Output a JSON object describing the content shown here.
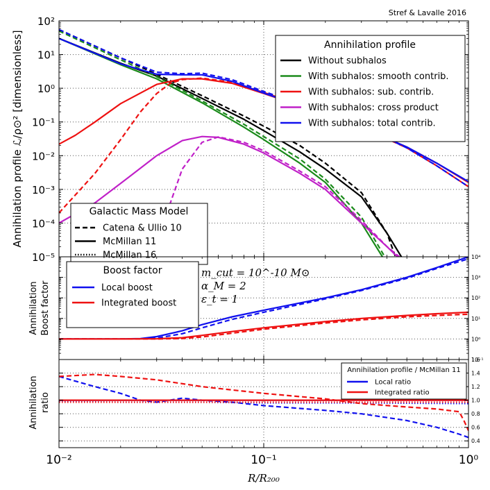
{
  "credit": "Stref & Lavalle 2016",
  "colors": {
    "black": "#000000",
    "green": "#1a8a1a",
    "red": "#ee1111",
    "magenta": "#c020c8",
    "blue": "#1010ee"
  },
  "chart_data": [
    {
      "type": "line",
      "title": "Annihilation profile",
      "ylabel": "Annihilation profile ℒ/ρ⊙² [dimensionless]",
      "xscale": "log",
      "yscale": "log",
      "xlim": [
        0.01,
        1
      ],
      "ylim": [
        1e-05,
        100
      ],
      "yticks": [
        "10⁻⁵",
        "10⁻⁴",
        "10⁻³",
        "10⁻²",
        "10⁻¹",
        "10⁰",
        "10¹",
        "10²"
      ],
      "ytick_values": [
        1e-05,
        0.0001,
        0.001,
        0.01,
        0.1,
        1,
        10,
        100
      ],
      "grid": "dotted at x = 0.1, 1",
      "legend": {
        "title": "Annihilation profile",
        "position": "upper right",
        "entries": [
          {
            "label": "Without subhalos",
            "color_key": "black"
          },
          {
            "label": "With subhalos: smooth contrib.",
            "color_key": "green"
          },
          {
            "label": "With subhalos: sub. contrib.",
            "color_key": "red"
          },
          {
            "label": "With subhalos: cross product",
            "color_key": "magenta"
          },
          {
            "label": "With subhalos: total contrib.",
            "color_key": "blue"
          }
        ]
      },
      "style_legend": {
        "title": "Galactic Mass Model",
        "position": "lower left",
        "entries": [
          {
            "label": "Catena & Ullio 10",
            "dash": "dashed"
          },
          {
            "label": "McMillan 11",
            "dash": "solid"
          },
          {
            "label": "McMillan 16",
            "dash": "dotted"
          }
        ]
      },
      "series": [
        {
          "name": "Without subhalos",
          "color_key": "black",
          "model": "McMillan 11",
          "dash": "solid",
          "x": [
            0.01,
            0.02,
            0.03,
            0.05,
            0.08,
            0.1,
            0.15,
            0.2,
            0.3,
            0.4,
            0.47
          ],
          "y": [
            30,
            5.5,
            2.3,
            0.5,
            0.12,
            0.055,
            0.013,
            0.004,
            0.0006,
            5e-05,
            1e-05
          ]
        },
        {
          "name": "Without subhalos",
          "color_key": "black",
          "model": "Catena & Ullio 10",
          "dash": "dashed",
          "x": [
            0.01,
            0.02,
            0.03,
            0.05,
            0.08,
            0.1,
            0.15,
            0.2,
            0.3,
            0.4,
            0.44
          ],
          "y": [
            55,
            8,
            2.6,
            0.6,
            0.15,
            0.075,
            0.02,
            0.006,
            0.0008,
            5e-05,
            1e-05
          ]
        },
        {
          "name": "With subhalos: smooth contrib.",
          "color_key": "green",
          "model": "McMillan 11",
          "dash": "solid",
          "x": [
            0.01,
            0.02,
            0.03,
            0.05,
            0.08,
            0.1,
            0.15,
            0.2,
            0.3,
            0.38
          ],
          "y": [
            30,
            5,
            1.9,
            0.37,
            0.07,
            0.03,
            0.006,
            0.0016,
            0.0001,
            1e-05
          ]
        },
        {
          "name": "With subhalos: smooth contrib.",
          "color_key": "green",
          "model": "Catena & Ullio 10",
          "dash": "dashed",
          "x": [
            0.01,
            0.02,
            0.03,
            0.05,
            0.08,
            0.1,
            0.15,
            0.2,
            0.3,
            0.39
          ],
          "y": [
            50,
            7,
            2.2,
            0.42,
            0.085,
            0.037,
            0.008,
            0.002,
            0.00015,
            1e-05
          ]
        },
        {
          "name": "With subhalos: sub. contrib.",
          "color_key": "red",
          "model": "McMillan 11",
          "dash": "solid",
          "x": [
            0.01,
            0.012,
            0.015,
            0.02,
            0.03,
            0.04,
            0.05,
            0.07,
            0.1,
            0.2,
            0.3,
            0.5,
            0.7,
            1
          ],
          "y": [
            0.022,
            0.04,
            0.1,
            0.35,
            1.3,
            1.9,
            1.9,
            1.4,
            0.7,
            0.17,
            0.07,
            0.018,
            0.006,
            0.0016
          ]
        },
        {
          "name": "With subhalos: sub. contrib.",
          "color_key": "red",
          "model": "Catena & Ullio 10",
          "dash": "dashed",
          "x": [
            0.01,
            0.015,
            0.02,
            0.025,
            0.03,
            0.035,
            0.04,
            0.05,
            0.07,
            0.1,
            0.2,
            0.3,
            0.5,
            0.7,
            1
          ],
          "y": [
            0.0002,
            0.003,
            0.03,
            0.2,
            0.7,
            1.4,
            1.8,
            2.0,
            1.5,
            0.75,
            0.18,
            0.07,
            0.017,
            0.005,
            0.0012
          ]
        },
        {
          "name": "With subhalos: cross product",
          "color_key": "magenta",
          "model": "McMillan 11",
          "dash": "solid",
          "x": [
            0.01,
            0.015,
            0.02,
            0.03,
            0.04,
            0.05,
            0.06,
            0.08,
            0.1,
            0.15,
            0.2,
            0.3,
            0.4,
            0.45
          ],
          "y": [
            0.0001,
            0.0004,
            0.0015,
            0.01,
            0.028,
            0.037,
            0.035,
            0.022,
            0.012,
            0.003,
            0.001,
            0.0001,
            2e-05,
            1e-05
          ]
        },
        {
          "name": "With subhalos: cross product",
          "color_key": "magenta",
          "model": "Catena & Ullio 10",
          "dash": "dashed",
          "x": [
            0.03,
            0.035,
            0.04,
            0.05,
            0.06,
            0.08,
            0.1,
            0.15,
            0.2,
            0.3,
            0.4,
            0.46
          ],
          "y": [
            1e-05,
            0.0004,
            0.004,
            0.025,
            0.036,
            0.025,
            0.014,
            0.0035,
            0.0012,
            0.00012,
            2e-05,
            1e-05
          ]
        },
        {
          "name": "With subhalos: total contrib.",
          "color_key": "blue",
          "model": "McMillan 11",
          "dash": "solid",
          "x": [
            0.01,
            0.02,
            0.03,
            0.04,
            0.05,
            0.07,
            0.1,
            0.2,
            0.3,
            0.5,
            0.7,
            1
          ],
          "y": [
            30,
            5.3,
            2.6,
            2.5,
            2.5,
            1.6,
            0.72,
            0.17,
            0.07,
            0.018,
            0.006,
            0.0017
          ]
        },
        {
          "name": "With subhalos: total contrib.",
          "color_key": "blue",
          "model": "Catena & Ullio 10",
          "dash": "dashed",
          "x": [
            0.01,
            0.02,
            0.03,
            0.04,
            0.05,
            0.07,
            0.1,
            0.2,
            0.3,
            0.5,
            0.7,
            1
          ],
          "y": [
            55,
            8,
            3,
            2.7,
            2.8,
            1.8,
            0.8,
            0.19,
            0.075,
            0.017,
            0.005,
            0.0012
          ]
        }
      ]
    },
    {
      "type": "line",
      "title": "Boost factor",
      "ylabel": [
        "Annihilation",
        "Boost factor"
      ],
      "xscale": "log",
      "yscale": "log",
      "xlim": [
        0.01,
        1
      ],
      "ylim": [
        0.1,
        10000
      ],
      "yticks": [
        "10⁻¹",
        "10⁰",
        "10¹",
        "10²",
        "10³",
        "10⁴"
      ],
      "ytick_values": [
        0.1,
        1,
        10,
        100,
        1000,
        10000
      ],
      "annotations": [
        "m_cut = 10^-10 M⊙",
        "α_M = 2",
        "ε_t = 1"
      ],
      "legend": {
        "title": "Boost factor",
        "position": "upper left",
        "entries": [
          {
            "label": "Local boost",
            "color_key": "blue"
          },
          {
            "label": "Integrated boost",
            "color_key": "red"
          }
        ]
      },
      "series": [
        {
          "name": "Local boost",
          "color_key": "blue",
          "model": "McMillan 11",
          "dash": "solid",
          "x": [
            0.01,
            0.02,
            0.025,
            0.03,
            0.04,
            0.05,
            0.07,
            0.1,
            0.2,
            0.3,
            0.5,
            0.7,
            1
          ],
          "y": [
            1,
            1,
            1.05,
            1.3,
            2.5,
            5,
            12,
            25,
            100,
            250,
            1000,
            3000,
            10000
          ]
        },
        {
          "name": "Local boost",
          "color_key": "blue",
          "model": "Catena & Ullio 10",
          "dash": "dashed",
          "x": [
            0.01,
            0.02,
            0.025,
            0.03,
            0.04,
            0.05,
            0.07,
            0.1,
            0.2,
            0.3,
            0.5,
            0.7,
            1
          ],
          "y": [
            1,
            1,
            1.02,
            1.1,
            1.8,
            3.5,
            9,
            20,
            90,
            230,
            900,
            2700,
            8000
          ]
        },
        {
          "name": "Integrated boost",
          "color_key": "red",
          "model": "McMillan 11",
          "dash": "solid",
          "x": [
            0.01,
            0.02,
            0.03,
            0.04,
            0.05,
            0.07,
            0.1,
            0.2,
            0.3,
            0.5,
            0.7,
            1
          ],
          "y": [
            1,
            1,
            1.02,
            1.15,
            1.5,
            2.3,
            3.5,
            7,
            10,
            14,
            17,
            20
          ]
        },
        {
          "name": "Integrated boost",
          "color_key": "red",
          "model": "Catena & Ullio 10",
          "dash": "dashed",
          "x": [
            0.01,
            0.02,
            0.03,
            0.04,
            0.05,
            0.07,
            0.1,
            0.2,
            0.3,
            0.5,
            0.7,
            1
          ],
          "y": [
            1,
            1,
            1.0,
            1.05,
            1.25,
            1.9,
            3,
            6,
            8.5,
            12,
            14,
            16
          ]
        }
      ]
    },
    {
      "type": "line",
      "title": "Annihilation profile / McMillan 11",
      "ylabel": [
        "Annihilation",
        "ratio"
      ],
      "xlabel": "R/R₂₀₀",
      "xscale": "log",
      "yscale": "linear",
      "xlim": [
        0.01,
        1
      ],
      "ylim": [
        0.3,
        1.6
      ],
      "xticks": [
        "10⁻²",
        "10⁻¹",
        "10⁰"
      ],
      "xtick_values": [
        0.01,
        0.1,
        1
      ],
      "yticks": [
        "0.4",
        "0.6",
        "0.8",
        "1.0",
        "1.2",
        "1.4",
        "1.6"
      ],
      "ytick_values": [
        0.4,
        0.6,
        0.8,
        1.0,
        1.2,
        1.4,
        1.6
      ],
      "legend": {
        "title": "Annihilation profile / McMillan 11",
        "position": "upper right",
        "entries": [
          {
            "label": "Local ratio",
            "color_key": "blue"
          },
          {
            "label": "Integrated ratio",
            "color_key": "red"
          }
        ]
      },
      "series": [
        {
          "name": "Local ratio",
          "color_key": "blue",
          "model": "McMillan 11",
          "dash": "solid",
          "x": [
            0.01,
            1
          ],
          "y": [
            1.0,
            1.0
          ]
        },
        {
          "name": "Local ratio",
          "color_key": "blue",
          "model": "Catena & Ullio 10",
          "dash": "dashed",
          "x": [
            0.01,
            0.015,
            0.02,
            0.025,
            0.03,
            0.04,
            0.05,
            0.07,
            0.1,
            0.2,
            0.3,
            0.5,
            0.7,
            0.9,
            1
          ],
          "y": [
            1.35,
            1.2,
            1.1,
            1.0,
            0.97,
            1.03,
            1.0,
            0.97,
            0.92,
            0.85,
            0.8,
            0.7,
            0.6,
            0.5,
            0.45
          ]
        },
        {
          "name": "Local ratio",
          "color_key": "blue",
          "model": "McMillan 16",
          "dash": "dotted",
          "x": [
            0.01,
            0.02,
            0.05,
            0.1,
            0.3,
            1
          ],
          "y": [
            0.98,
            0.97,
            0.97,
            0.96,
            0.96,
            0.95
          ]
        },
        {
          "name": "Integrated ratio",
          "color_key": "red",
          "model": "McMillan 11",
          "dash": "solid",
          "x": [
            0.01,
            1
          ],
          "y": [
            1.0,
            1.0
          ]
        },
        {
          "name": "Integrated ratio",
          "color_key": "red",
          "model": "Catena & Ullio 10",
          "dash": "dashed",
          "x": [
            0.01,
            0.015,
            0.02,
            0.03,
            0.05,
            0.1,
            0.2,
            0.3,
            0.5,
            0.7,
            0.9,
            0.95,
            1
          ],
          "y": [
            1.35,
            1.38,
            1.35,
            1.3,
            1.2,
            1.1,
            1.02,
            0.95,
            0.9,
            0.87,
            0.83,
            0.7,
            0.55
          ]
        },
        {
          "name": "Integrated ratio",
          "color_key": "red",
          "model": "McMillan 16",
          "dash": "dotted",
          "x": [
            0.01,
            0.02,
            0.05,
            0.1,
            0.3,
            1
          ],
          "y": [
            0.97,
            0.97,
            0.97,
            0.97,
            0.97,
            0.97
          ]
        }
      ]
    }
  ]
}
